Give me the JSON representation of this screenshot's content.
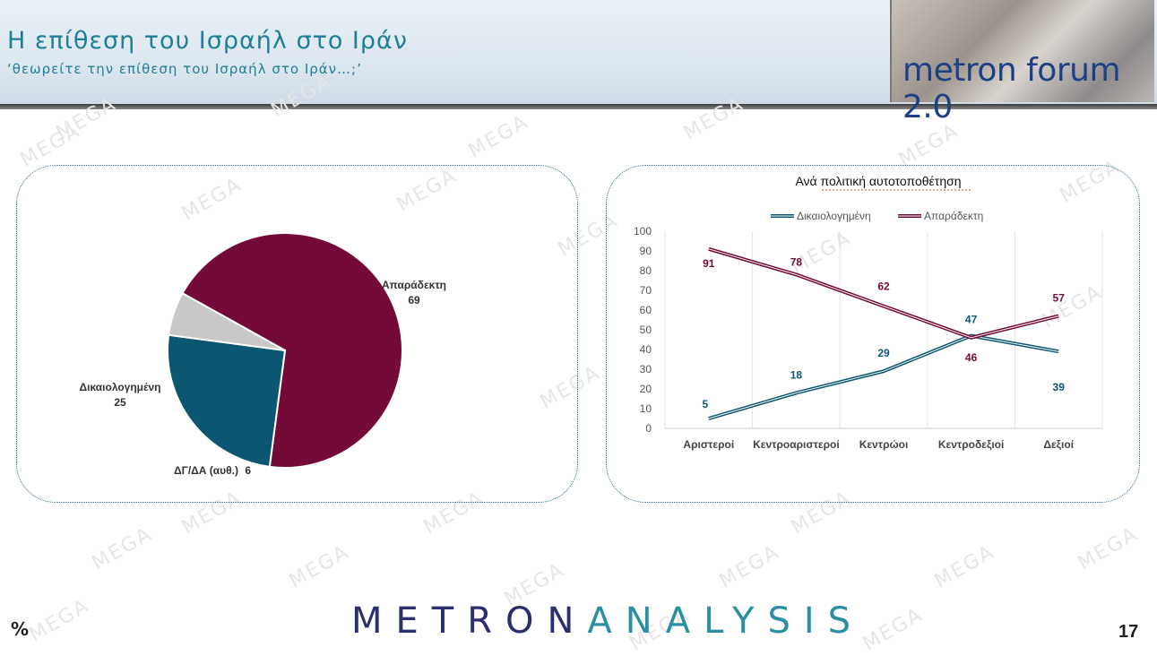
{
  "header": {
    "title": "Η επίθεση του Ισραήλ στο Ιράν",
    "subtitle": "‘θεωρείτε την επίθεση του Ισραήλ στο Ιράν…;’",
    "brand": "metron forum 2.0"
  },
  "footer": {
    "logo_part1": "METRON",
    "logo_part2": "ANALYSIS",
    "unit_symbol": "%",
    "page_number": "17"
  },
  "watermark_text": "MEGA",
  "colors": {
    "title": "#1f7f97",
    "unacceptable": "#730a38",
    "justified": "#0b5670",
    "dk_na": "#c8c8c8"
  },
  "chart_data": [
    {
      "type": "pie",
      "slices": [
        {
          "label": "Απαράδεκτη",
          "value": 69,
          "color": "#730a38"
        },
        {
          "label": "Δικαιολογημένη",
          "value": 25,
          "color": "#0b5670"
        },
        {
          "label": "ΔΓ/ΔΑ (αυθ.)",
          "value": 6,
          "color": "#c8c8c8"
        }
      ]
    },
    {
      "type": "line",
      "title": "Ανά πολιτική αυτοτοποθέτηση",
      "categories": [
        "Αριστεροί",
        "Κεντροαριστεροί",
        "Κεντρώοι",
        "Κεντροδεξιοί",
        "Δεξιοί"
      ],
      "series": [
        {
          "name": "Δικαιολογημένη",
          "values": [
            5,
            18,
            29,
            47,
            39
          ],
          "color": "#0b5670"
        },
        {
          "name": "Απαράδεκτη",
          "values": [
            91,
            78,
            62,
            46,
            57
          ],
          "color": "#730a38"
        }
      ],
      "ylim": [
        0,
        100
      ],
      "yticks": [
        0,
        10,
        20,
        30,
        40,
        50,
        60,
        70,
        80,
        90,
        100
      ],
      "grid": "vertical",
      "legend": "top"
    }
  ]
}
